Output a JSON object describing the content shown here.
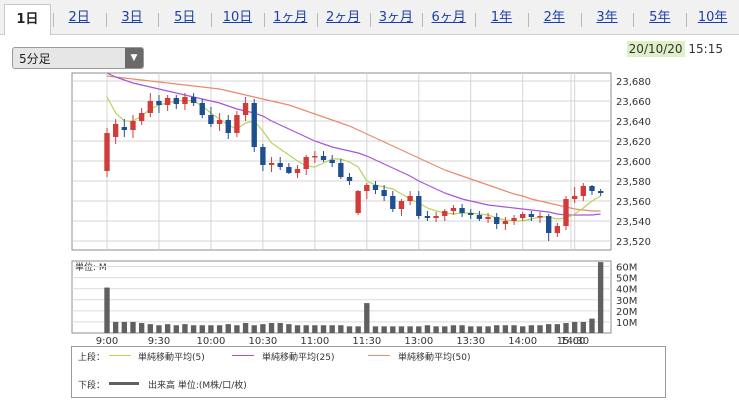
{
  "tabs": [
    "1日",
    "2日",
    "3日",
    "5日",
    "10日",
    "1ヶ月",
    "2ヶ月",
    "3ヶ月",
    "6ヶ月",
    "1年",
    "2年",
    "3年",
    "5年",
    "10年"
  ],
  "active_tab": "1日",
  "interval_select": {
    "value": "5分足"
  },
  "datetime": {
    "date": "20/10/20",
    "time": "15:15"
  },
  "colors": {
    "up": "#d33b3b",
    "down": "#1d4f91",
    "ma5": "#b9d35a",
    "ma25": "#a855d9",
    "ma50": "#e88b6c",
    "volume": "#606060"
  },
  "chart_data": [
    {
      "type": "candlestick",
      "x_ticks": [
        "9:00",
        "9:30",
        "10:00",
        "10:30",
        "11:00",
        "11:30",
        "13:00",
        "13:30",
        "14:00",
        "14:30",
        "15:00"
      ],
      "y_ticks": [
        23680,
        23660,
        23640,
        23620,
        23600,
        23580,
        23560,
        23540,
        23520
      ],
      "ylim": [
        23510,
        23690
      ],
      "ohlc": [
        [
          23590,
          23633,
          23584,
          23628
        ],
        [
          23624,
          23642,
          23617,
          23637
        ],
        [
          23634,
          23642,
          23624,
          23631
        ],
        [
          23631,
          23646,
          23623,
          23640
        ],
        [
          23640,
          23653,
          23636,
          23648
        ],
        [
          23648,
          23668,
          23644,
          23660
        ],
        [
          23660,
          23666,
          23648,
          23656
        ],
        [
          23656,
          23666,
          23650,
          23663
        ],
        [
          23663,
          23666,
          23652,
          23657
        ],
        [
          23657,
          23668,
          23651,
          23664
        ],
        [
          23664,
          23668,
          23655,
          23658
        ],
        [
          23658,
          23662,
          23643,
          23646
        ],
        [
          23646,
          23654,
          23634,
          23637
        ],
        [
          23637,
          23648,
          23630,
          23641
        ],
        [
          23641,
          23646,
          23622,
          23628
        ],
        [
          23628,
          23650,
          23624,
          23646
        ],
        [
          23646,
          23664,
          23640,
          23658
        ],
        [
          23658,
          23662,
          23609,
          23614
        ],
        [
          23614,
          23617,
          23590,
          23596
        ],
        [
          23596,
          23604,
          23589,
          23598
        ],
        [
          23598,
          23604,
          23591,
          23594
        ],
        [
          23594,
          23598,
          23587,
          23588
        ],
        [
          23588,
          23596,
          23583,
          23592
        ],
        [
          23592,
          23606,
          23586,
          23604
        ],
        [
          23604,
          23610,
          23598,
          23605
        ],
        [
          23605,
          23610,
          23599,
          23601
        ],
        [
          23601,
          23606,
          23594,
          23598
        ],
        [
          23598,
          23602,
          23582,
          23584
        ],
        [
          23584,
          23588,
          23576,
          23580
        ],
        [
          23548,
          23571,
          23546,
          23570
        ],
        [
          23570,
          23578,
          23562,
          23576
        ],
        [
          23576,
          23580,
          23567,
          23571
        ],
        [
          23571,
          23576,
          23560,
          23565
        ],
        [
          23565,
          23570,
          23549,
          23552
        ],
        [
          23552,
          23562,
          23545,
          23560
        ],
        [
          23560,
          23570,
          23556,
          23565
        ],
        [
          23565,
          23570,
          23542,
          23545
        ],
        [
          23545,
          23550,
          23540,
          23543
        ],
        [
          23543,
          23549,
          23539,
          23545
        ],
        [
          23545,
          23552,
          23540,
          23550
        ],
        [
          23550,
          23556,
          23546,
          23553
        ],
        [
          23553,
          23557,
          23544,
          23548
        ],
        [
          23548,
          23552,
          23542,
          23546
        ],
        [
          23546,
          23550,
          23540,
          23542
        ],
        [
          23542,
          23548,
          23538,
          23544
        ],
        [
          23544,
          23548,
          23532,
          23537
        ],
        [
          23537,
          23544,
          23531,
          23540
        ],
        [
          23540,
          23546,
          23536,
          23543
        ],
        [
          23543,
          23549,
          23540,
          23547
        ],
        [
          23547,
          23550,
          23540,
          23544
        ],
        [
          23544,
          23549,
          23538,
          23545
        ],
        [
          23545,
          23547,
          23520,
          23528
        ],
        [
          23528,
          23538,
          23524,
          23535
        ],
        [
          23535,
          23565,
          23531,
          23562
        ],
        [
          23562,
          23574,
          23558,
          23565
        ],
        [
          23565,
          23578,
          23560,
          23575
        ],
        [
          23575,
          23576,
          23566,
          23570
        ],
        [
          23570,
          23572,
          23565,
          23568
        ]
      ],
      "ma5": [
        23664,
        23648,
        23640,
        23640,
        23645,
        23652,
        23656,
        23658,
        23660,
        23661,
        23660,
        23655,
        23648,
        23642,
        23636,
        23632,
        23638,
        23640,
        23630,
        23618,
        23612,
        23606,
        23600,
        23595,
        23594,
        23598,
        23602,
        23602,
        23599,
        23594,
        23580,
        23576,
        23574,
        23572,
        23567,
        23562,
        23558,
        23553,
        23550,
        23548,
        23547,
        23548,
        23548,
        23547,
        23546,
        23543,
        23541,
        23540,
        23540,
        23542,
        23544,
        23544,
        23542,
        23543,
        23547,
        23553,
        23560,
        23565
      ],
      "ma25": [
        23688,
        23684,
        23681,
        23678,
        23676,
        23674,
        23672,
        23670,
        23668,
        23666,
        23664,
        23662,
        23660,
        23658,
        23655,
        23652,
        23650,
        23648,
        23645,
        23640,
        23636,
        23632,
        23628,
        23624,
        23620,
        23617,
        23614,
        23612,
        23610,
        23608,
        23605,
        23601,
        23597,
        23593,
        23589,
        23585,
        23580,
        23576,
        23572,
        23568,
        23565,
        23562,
        23560,
        23558,
        23556,
        23555,
        23554,
        23553,
        23552,
        23551,
        23550,
        23549,
        23547,
        23546,
        23546,
        23546,
        23546,
        23547
      ],
      "ma50": [
        23685,
        23684,
        23683,
        23682,
        23681,
        23680,
        23679,
        23678,
        23677,
        23676,
        23675,
        23674,
        23673,
        23672,
        23670,
        23668,
        23666,
        23664,
        23662,
        23660,
        23658,
        23656,
        23653,
        23650,
        23647,
        23644,
        23641,
        23638,
        23635,
        23631,
        23627,
        23623,
        23619,
        23615,
        23611,
        23607,
        23603,
        23599,
        23595,
        23591,
        23588,
        23585,
        23582,
        23579,
        23576,
        23573,
        23570,
        23567,
        23565,
        23562,
        23560,
        23558,
        23556,
        23554,
        23552,
        23551,
        23550,
        23550
      ]
    },
    {
      "type": "bar",
      "unit_label": "単位: M",
      "y_ticks": [
        "60M",
        "50M",
        "40M",
        "30M",
        "20M",
        "10M"
      ],
      "ylim": [
        0,
        65
      ],
      "values": [
        41,
        10,
        10,
        10,
        9,
        8,
        7,
        8,
        7,
        8,
        7,
        7,
        7,
        7,
        8,
        7,
        9,
        7,
        8,
        9,
        9,
        8,
        7,
        7,
        7,
        7,
        7,
        7,
        6,
        6,
        27,
        6,
        6,
        6,
        6,
        6,
        6,
        7,
        6,
        6,
        7,
        7,
        6,
        6,
        6,
        7,
        7,
        7,
        6,
        7,
        7,
        8,
        8,
        9,
        10,
        10,
        13,
        64
      ]
    }
  ],
  "legend": {
    "upper_label": "上段：",
    "lower_label": "下段：",
    "items": [
      {
        "label": "単純移動平均(5)"
      },
      {
        "label": "単純移動平均(25)"
      },
      {
        "label": "単純移動平均(50)"
      }
    ],
    "volume_label": "出来高 単位:(M株/口/枚)"
  }
}
